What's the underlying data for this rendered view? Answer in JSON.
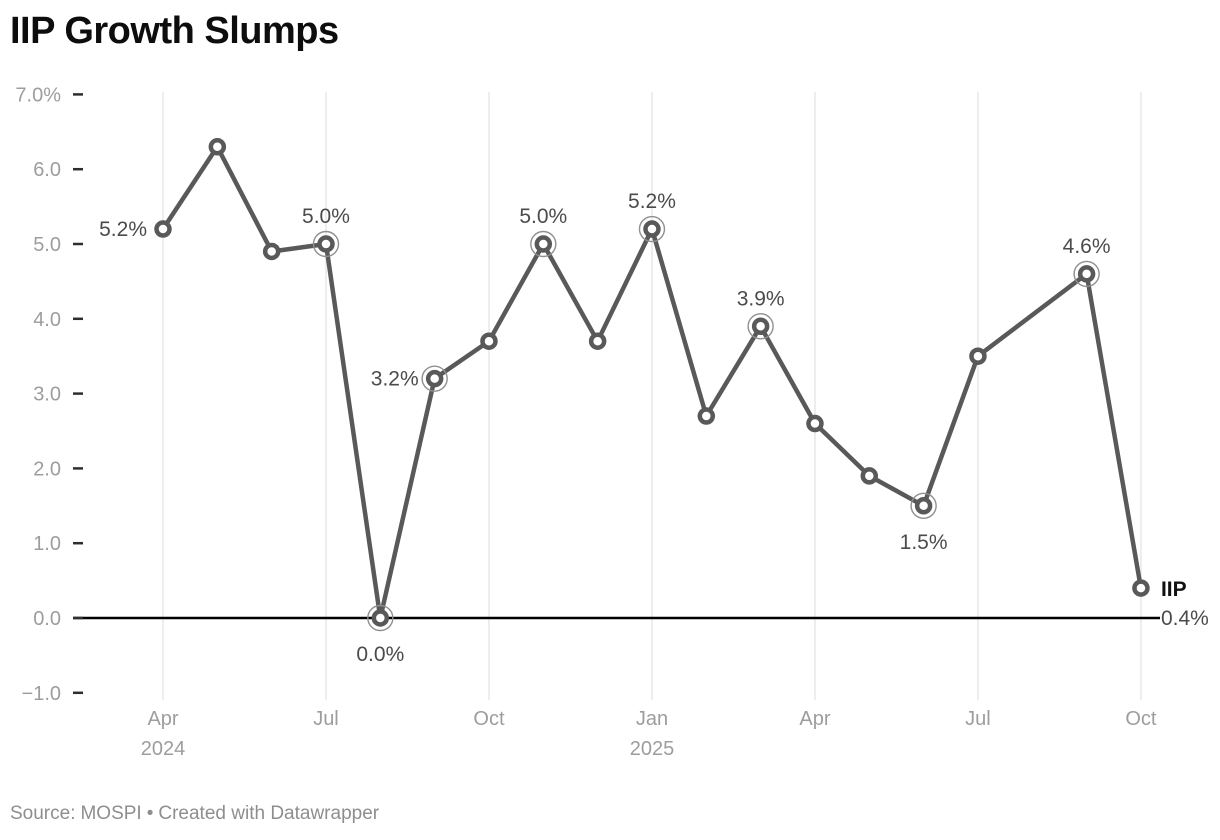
{
  "header": {
    "title": "IIP Growth Slumps"
  },
  "footer": {
    "source_label": "Source:",
    "source_name": "MOSPI",
    "separator": "•",
    "attribution": "Created with Datawrapper"
  },
  "colors": {
    "line": "#595959",
    "marker_fill": "#ffffff",
    "ring": "#8f8f8f",
    "point_label": "#4b4b4b",
    "end_label_name": "#111111",
    "axis_text": "#9d9d9d",
    "tick": "#2e2e2e",
    "gridline": "#e4e4e4",
    "zero_line": "#000000"
  },
  "chart_data": {
    "type": "line",
    "title": "IIP Growth Slumps",
    "series_name": "IIP",
    "unit": "%",
    "x": [
      "Apr 2024",
      "May 2024",
      "Jun 2024",
      "Jul 2024",
      "Aug 2024",
      "Sep 2024",
      "Oct 2024",
      "Nov 2024",
      "Dec 2024",
      "Jan 2025",
      "Feb 2025",
      "Mar 2025",
      "Apr 2025",
      "May 2025",
      "Jun 2025",
      "Jul 2025",
      "Aug 2025",
      "Sep 2025",
      "Oct 2025"
    ],
    "values": [
      5.2,
      6.3,
      4.9,
      5.0,
      0.0,
      3.2,
      3.7,
      5.0,
      3.7,
      5.2,
      2.7,
      3.9,
      2.6,
      1.9,
      1.5,
      3.5,
      null,
      4.6,
      0.4
    ],
    "ylim": [
      -1.0,
      7.0
    ],
    "grid": "vertical-only",
    "legend_position": "end-of-line",
    "y_ticks": [
      {
        "label": "7.0%",
        "v": 7
      },
      {
        "label": "6.0",
        "v": 6
      },
      {
        "label": "5.0",
        "v": 5
      },
      {
        "label": "4.0",
        "v": 4
      },
      {
        "label": "3.0",
        "v": 3
      },
      {
        "label": "2.0",
        "v": 2
      },
      {
        "label": "1.0",
        "v": 1
      },
      {
        "label": "0.0",
        "v": 0
      },
      {
        "label": "−1.0",
        "v": -1
      }
    ],
    "x_ticks": [
      {
        "label": "Apr",
        "sublabel": "2024",
        "i": 0
      },
      {
        "label": "Jul",
        "i": 3
      },
      {
        "label": "Oct",
        "i": 6
      },
      {
        "label": "Jan",
        "sublabel": "2025",
        "i": 9
      },
      {
        "label": "Apr",
        "i": 12
      },
      {
        "label": "Jul",
        "i": 15
      },
      {
        "label": "Oct",
        "i": 18
      }
    ],
    "highlighted_points": [
      3,
      4,
      5,
      7,
      9,
      11,
      14,
      17
    ],
    "point_labels": [
      {
        "i": 0,
        "text": "5.2%",
        "pos": "left"
      },
      {
        "i": 3,
        "text": "5.0%",
        "pos": "above"
      },
      {
        "i": 4,
        "text": "0.0%",
        "pos": "below"
      },
      {
        "i": 5,
        "text": "3.2%",
        "pos": "left"
      },
      {
        "i": 7,
        "text": "5.0%",
        "pos": "above"
      },
      {
        "i": 9,
        "text": "5.2%",
        "pos": "above"
      },
      {
        "i": 11,
        "text": "3.9%",
        "pos": "above"
      },
      {
        "i": 14,
        "text": "1.5%",
        "pos": "below"
      },
      {
        "i": 17,
        "text": "4.6%",
        "pos": "above"
      }
    ],
    "end_label": {
      "i": 18,
      "series": "IIP",
      "value": "0.4%"
    }
  }
}
